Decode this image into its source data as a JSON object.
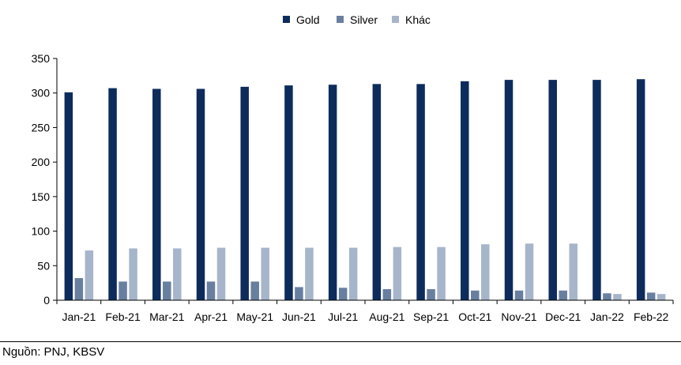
{
  "chart_data": {
    "type": "bar",
    "categories": [
      "Jan-21",
      "Feb-21",
      "Mar-21",
      "Apr-21",
      "May-21",
      "Jun-21",
      "Jul-21",
      "Aug-21",
      "Sep-21",
      "Oct-21",
      "Nov-21",
      "Dec-21",
      "Jan-22",
      "Feb-22"
    ],
    "series": [
      {
        "name": "Gold",
        "color": "#0d2c5c",
        "values": [
          301,
          307,
          306,
          306,
          309,
          311,
          312,
          313,
          313,
          317,
          319,
          319,
          319,
          320
        ]
      },
      {
        "name": "Silver",
        "color": "#687fa0",
        "values": [
          32,
          27,
          27,
          27,
          27,
          19,
          18,
          16,
          16,
          14,
          14,
          14,
          10,
          11
        ]
      },
      {
        "name": "Khác",
        "color": "#a7b5cb",
        "values": [
          72,
          75,
          75,
          76,
          76,
          76,
          76,
          77,
          77,
          81,
          82,
          82,
          9,
          9
        ]
      }
    ],
    "ylim": [
      0,
      350
    ],
    "yticks": [
      0,
      50,
      100,
      150,
      200,
      250,
      300,
      350
    ],
    "title": "",
    "xlabel": "",
    "ylabel": "",
    "legend_position": "top-center",
    "grid": false
  },
  "source": "Nguồn: PNJ, KBSV"
}
